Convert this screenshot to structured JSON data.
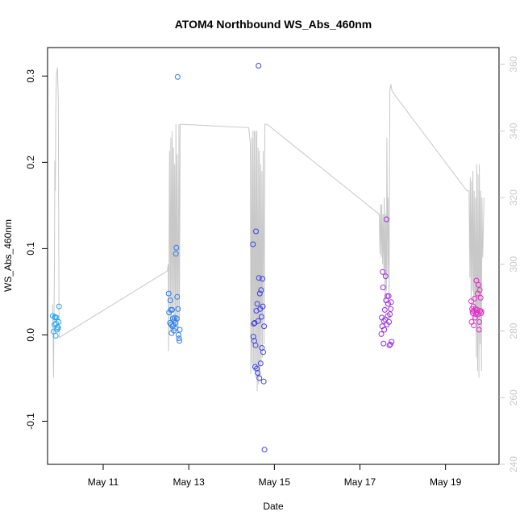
{
  "chart_data": {
    "type": "scatter",
    "title": "ATOM4 Northbound WS_Abs_460nm",
    "xlabel": "Date",
    "ylabel": "WS_Abs_460nm",
    "xlim": [
      9.7,
      20.25
    ],
    "ylim": [
      -0.15,
      0.333
    ],
    "y2lim": [
      240,
      365
    ],
    "xticks": [
      {
        "value": 11,
        "label": "May 11"
      },
      {
        "value": 13,
        "label": "May 13"
      },
      {
        "value": 15,
        "label": "May 15"
      },
      {
        "value": 17,
        "label": "May 17"
      },
      {
        "value": 19,
        "label": "May 19"
      }
    ],
    "yticks": [
      {
        "value": -0.1,
        "label": "-0.1"
      },
      {
        "value": 0.0,
        "label": "0.0"
      },
      {
        "value": 0.1,
        "label": "0.1"
      },
      {
        "value": 0.2,
        "label": "0.2"
      },
      {
        "value": 0.3,
        "label": "0.3"
      }
    ],
    "y2ticks": [
      {
        "value": 240,
        "label": "240"
      },
      {
        "value": 260,
        "label": "260"
      },
      {
        "value": 280,
        "label": "280"
      },
      {
        "value": 300,
        "label": "300"
      },
      {
        "value": 320,
        "label": "320"
      },
      {
        "value": 340,
        "label": "340"
      },
      {
        "value": 360,
        "label": "360"
      }
    ],
    "points": [
      {
        "x": 9.82,
        "y": 0.022,
        "color": "#2aa6f0"
      },
      {
        "x": 9.84,
        "y": 0.004,
        "color": "#2aa6f0"
      },
      {
        "x": 9.86,
        "y": 0.012,
        "color": "#2aa6f0"
      },
      {
        "x": 9.87,
        "y": 0.021,
        "color": "#2aa6f0"
      },
      {
        "x": 9.88,
        "y": 0.02,
        "color": "#2aa6f0"
      },
      {
        "x": 9.89,
        "y": -0.001,
        "color": "#2aa6f0"
      },
      {
        "x": 9.9,
        "y": 0.013,
        "color": "#2aa6f0"
      },
      {
        "x": 9.91,
        "y": 0.02,
        "color": "#2aa6f0"
      },
      {
        "x": 9.92,
        "y": 0.006,
        "color": "#2aa6f0"
      },
      {
        "x": 9.93,
        "y": 0.009,
        "color": "#2aa6f0"
      },
      {
        "x": 9.95,
        "y": 0.008,
        "color": "#2aa6f0"
      },
      {
        "x": 9.96,
        "y": 0.015,
        "color": "#2aa6f0"
      },
      {
        "x": 9.97,
        "y": 0.033,
        "color": "#2aa6f0"
      },
      {
        "x": 12.53,
        "y": 0.048,
        "color": "#2e7fe8"
      },
      {
        "x": 12.54,
        "y": 0.026,
        "color": "#2e7fe8"
      },
      {
        "x": 12.56,
        "y": 0.014,
        "color": "#2e7fe8"
      },
      {
        "x": 12.57,
        "y": 0.04,
        "color": "#2e7fe8"
      },
      {
        "x": 12.58,
        "y": 0.029,
        "color": "#2e7fe8"
      },
      {
        "x": 12.59,
        "y": 0.012,
        "color": "#2e7fe8"
      },
      {
        "x": 12.6,
        "y": 0.002,
        "color": "#2e7fe8"
      },
      {
        "x": 12.61,
        "y": 0.029,
        "color": "#2e7fe8"
      },
      {
        "x": 12.62,
        "y": 0.01,
        "color": "#2e7fe8"
      },
      {
        "x": 12.63,
        "y": 0.019,
        "color": "#2e7fe8"
      },
      {
        "x": 12.64,
        "y": 0.011,
        "color": "#2e7fe8"
      },
      {
        "x": 12.65,
        "y": 0.005,
        "color": "#2e7fe8"
      },
      {
        "x": 12.66,
        "y": 0.017,
        "color": "#2e7fe8"
      },
      {
        "x": 12.67,
        "y": 0.02,
        "color": "#2e7fe8"
      },
      {
        "x": 12.68,
        "y": 0.008,
        "color": "#2e7fe8"
      },
      {
        "x": 12.69,
        "y": 0.014,
        "color": "#2e7fe8"
      },
      {
        "x": 12.7,
        "y": 0.094,
        "color": "#2e7fe8"
      },
      {
        "x": 12.71,
        "y": 0.101,
        "color": "#2e7fe8"
      },
      {
        "x": 12.72,
        "y": 0.019,
        "color": "#2e7fe8"
      },
      {
        "x": 12.73,
        "y": 0.044,
        "color": "#2e7fe8"
      },
      {
        "x": 12.74,
        "y": 0.299,
        "color": "#2e7fe8"
      },
      {
        "x": 12.75,
        "y": 0.03,
        "color": "#2e7fe8"
      },
      {
        "x": 12.76,
        "y": 0.0,
        "color": "#2e7fe8"
      },
      {
        "x": 12.77,
        "y": -0.004,
        "color": "#2e7fe8"
      },
      {
        "x": 12.78,
        "y": -0.007,
        "color": "#2e7fe8"
      },
      {
        "x": 12.79,
        "y": 0.006,
        "color": "#2e7fe8"
      },
      {
        "x": 14.5,
        "y": 0.105,
        "color": "#3f3fe6"
      },
      {
        "x": 14.51,
        "y": -0.002,
        "color": "#3f3fe6"
      },
      {
        "x": 14.52,
        "y": 0.013,
        "color": "#3f3fe6"
      },
      {
        "x": 14.53,
        "y": -0.007,
        "color": "#3f3fe6"
      },
      {
        "x": 14.54,
        "y": 0.014,
        "color": "#3f3fe6"
      },
      {
        "x": 14.55,
        "y": -0.037,
        "color": "#3f3fe6"
      },
      {
        "x": 14.56,
        "y": -0.012,
        "color": "#3f3fe6"
      },
      {
        "x": 14.57,
        "y": 0.12,
        "color": "#3f3fe6"
      },
      {
        "x": 14.58,
        "y": 0.028,
        "color": "#3f3fe6"
      },
      {
        "x": 14.59,
        "y": -0.039,
        "color": "#3f3fe6"
      },
      {
        "x": 14.6,
        "y": 0.036,
        "color": "#3f3fe6"
      },
      {
        "x": 14.61,
        "y": -0.044,
        "color": "#3f3fe6"
      },
      {
        "x": 14.62,
        "y": 0.016,
        "color": "#3f3fe6"
      },
      {
        "x": 14.63,
        "y": 0.312,
        "color": "#3f3fe6"
      },
      {
        "x": 14.64,
        "y": 0.066,
        "color": "#3f3fe6"
      },
      {
        "x": 14.65,
        "y": -0.05,
        "color": "#3f3fe6"
      },
      {
        "x": 14.66,
        "y": 0.048,
        "color": "#3f3fe6"
      },
      {
        "x": 14.67,
        "y": 0.03,
        "color": "#3f3fe6"
      },
      {
        "x": 14.68,
        "y": -0.033,
        "color": "#3f3fe6"
      },
      {
        "x": 14.69,
        "y": 0.052,
        "color": "#3f3fe6"
      },
      {
        "x": 14.7,
        "y": 0.021,
        "color": "#3f3fe6"
      },
      {
        "x": 14.71,
        "y": -0.015,
        "color": "#3f3fe6"
      },
      {
        "x": 14.72,
        "y": 0.065,
        "color": "#3f3fe6"
      },
      {
        "x": 14.73,
        "y": 0.033,
        "color": "#3f3fe6"
      },
      {
        "x": 14.74,
        "y": -0.02,
        "color": "#3f3fe6"
      },
      {
        "x": 14.75,
        "y": -0.054,
        "color": "#3f3fe6"
      },
      {
        "x": 14.76,
        "y": 0.01,
        "color": "#3f3fe6"
      },
      {
        "x": 14.77,
        "y": -0.133,
        "color": "#3f3fe6"
      },
      {
        "x": 17.5,
        "y": 0.001,
        "color": "#9a2fe0"
      },
      {
        "x": 17.51,
        "y": 0.02,
        "color": "#9a2fe0"
      },
      {
        "x": 17.52,
        "y": 0.01,
        "color": "#9a2fe0"
      },
      {
        "x": 17.53,
        "y": 0.073,
        "color": "#9a2fe0"
      },
      {
        "x": 17.54,
        "y": 0.055,
        "color": "#9a2fe0"
      },
      {
        "x": 17.55,
        "y": -0.01,
        "color": "#9a2fe0"
      },
      {
        "x": 17.56,
        "y": 0.016,
        "color": "#9a2fe0"
      },
      {
        "x": 17.57,
        "y": 0.006,
        "color": "#9a2fe0"
      },
      {
        "x": 17.58,
        "y": 0.029,
        "color": "#9a2fe0"
      },
      {
        "x": 17.59,
        "y": 0.018,
        "color": "#9a2fe0"
      },
      {
        "x": 17.6,
        "y": 0.068,
        "color": "#9a2fe0"
      },
      {
        "x": 17.61,
        "y": 0.04,
        "color": "#9a2fe0"
      },
      {
        "x": 17.62,
        "y": 0.134,
        "color": "#9a2fe0"
      },
      {
        "x": 17.63,
        "y": 0.012,
        "color": "#9a2fe0"
      },
      {
        "x": 17.64,
        "y": 0.045,
        "color": "#9a2fe0"
      },
      {
        "x": 17.65,
        "y": 0.022,
        "color": "#9a2fe0"
      },
      {
        "x": 17.66,
        "y": 0.036,
        "color": "#9a2fe0"
      },
      {
        "x": 17.67,
        "y": 0.045,
        "color": "#9a2fe0"
      },
      {
        "x": 17.68,
        "y": 0.015,
        "color": "#9a2fe0"
      },
      {
        "x": 17.69,
        "y": -0.012,
        "color": "#9a2fe0"
      },
      {
        "x": 17.7,
        "y": 0.024,
        "color": "#9a2fe0"
      },
      {
        "x": 17.71,
        "y": -0.011,
        "color": "#9a2fe0"
      },
      {
        "x": 17.72,
        "y": 0.03,
        "color": "#9a2fe0"
      },
      {
        "x": 17.73,
        "y": 0.038,
        "color": "#9a2fe0"
      },
      {
        "x": 17.74,
        "y": -0.008,
        "color": "#9a2fe0"
      },
      {
        "x": 19.6,
        "y": 0.039,
        "color": "#e02fc8"
      },
      {
        "x": 19.61,
        "y": 0.015,
        "color": "#e02fc8"
      },
      {
        "x": 19.62,
        "y": 0.03,
        "color": "#e02fc8"
      },
      {
        "x": 19.63,
        "y": 0.027,
        "color": "#e02fc8"
      },
      {
        "x": 19.64,
        "y": 0.025,
        "color": "#e02fc8"
      },
      {
        "x": 19.65,
        "y": 0.033,
        "color": "#e02fc8"
      },
      {
        "x": 19.66,
        "y": 0.011,
        "color": "#e02fc8"
      },
      {
        "x": 19.67,
        "y": 0.028,
        "color": "#e02fc8"
      },
      {
        "x": 19.68,
        "y": 0.042,
        "color": "#e02fc8"
      },
      {
        "x": 19.69,
        "y": 0.02,
        "color": "#e02fc8"
      },
      {
        "x": 19.7,
        "y": 0.03,
        "color": "#e02fc8"
      },
      {
        "x": 19.71,
        "y": 0.024,
        "color": "#e02fc8"
      },
      {
        "x": 19.72,
        "y": 0.063,
        "color": "#e02fc8"
      },
      {
        "x": 19.73,
        "y": 0.026,
        "color": "#e02fc8"
      },
      {
        "x": 19.74,
        "y": 0.029,
        "color": "#e02fc8"
      },
      {
        "x": 19.75,
        "y": 0.048,
        "color": "#e02fc8"
      },
      {
        "x": 19.76,
        "y": 0.024,
        "color": "#e02fc8"
      },
      {
        "x": 19.77,
        "y": 0.058,
        "color": "#e02fc8"
      },
      {
        "x": 19.78,
        "y": 0.006,
        "color": "#e02fc8"
      },
      {
        "x": 19.79,
        "y": 0.015,
        "color": "#e02fc8"
      },
      {
        "x": 19.8,
        "y": 0.052,
        "color": "#e02fc8"
      },
      {
        "x": 19.81,
        "y": 0.028,
        "color": "#e02fc8"
      },
      {
        "x": 19.82,
        "y": 0.043,
        "color": "#e02fc8"
      },
      {
        "x": 19.83,
        "y": 0.025,
        "color": "#e02fc8"
      },
      {
        "x": 19.84,
        "y": 0.027,
        "color": "#e02fc8"
      }
    ],
    "series2": {
      "name": "right axis trace",
      "color": "#c8c8c8",
      "x": [
        9.82,
        9.84,
        9.86,
        9.87,
        9.88,
        9.89,
        9.9,
        9.91,
        9.93,
        9.95,
        9.97,
        12.5,
        12.52,
        12.53,
        12.55,
        12.57,
        12.58,
        12.6,
        12.61,
        12.63,
        12.64,
        12.66,
        12.67,
        12.69,
        12.7,
        12.72,
        12.73,
        12.75,
        12.77,
        12.78,
        12.8,
        12.82,
        14.4,
        14.44,
        14.45,
        14.47,
        14.48,
        14.5,
        14.51,
        14.53,
        14.54,
        14.56,
        14.57,
        14.59,
        14.6,
        14.62,
        14.63,
        14.65,
        14.66,
        14.68,
        14.69,
        14.71,
        14.72,
        14.74,
        14.76,
        14.78,
        14.8,
        14.83,
        17.45,
        17.47,
        17.48,
        17.5,
        17.51,
        17.53,
        17.54,
        17.56,
        17.57,
        17.59,
        17.6,
        17.62,
        17.63,
        17.65,
        17.66,
        17.68,
        17.7,
        17.72,
        17.75,
        17.8,
        19.5,
        19.55,
        19.57,
        19.58,
        19.6,
        19.61,
        19.63,
        19.64,
        19.66,
        19.67,
        19.69,
        19.7,
        19.72,
        19.73,
        19.75,
        19.76,
        19.78,
        19.79,
        19.81,
        19.82,
        19.84,
        19.85,
        19.87,
        19.9
      ],
      "y": [
        288,
        266,
        298,
        331,
        322,
        345,
        352,
        357,
        359,
        350,
        278,
        298,
        300,
        274,
        334,
        280,
        338,
        284,
        340,
        286,
        335,
        284,
        330,
        282,
        342,
        282,
        333,
        280,
        342,
        283,
        342,
        342,
        341,
        336,
        267,
        338,
        270,
        340,
        268,
        340,
        268,
        340,
        266,
        340,
        262,
        335,
        264,
        334,
        266,
        330,
        270,
        328,
        272,
        334,
        276,
        342,
        342,
        342,
        315,
        303,
        318,
        302,
        318,
        300,
        315,
        298,
        320,
        286,
        315,
        292,
        338,
        296,
        320,
        290,
        352,
        354,
        352,
        351,
        322,
        322,
        296,
        326,
        288,
        325,
        292,
        328,
        282,
        322,
        284,
        320,
        272,
        330,
        268,
        327,
        266,
        330,
        276,
        322,
        268,
        320,
        302,
        320
      ]
    }
  }
}
